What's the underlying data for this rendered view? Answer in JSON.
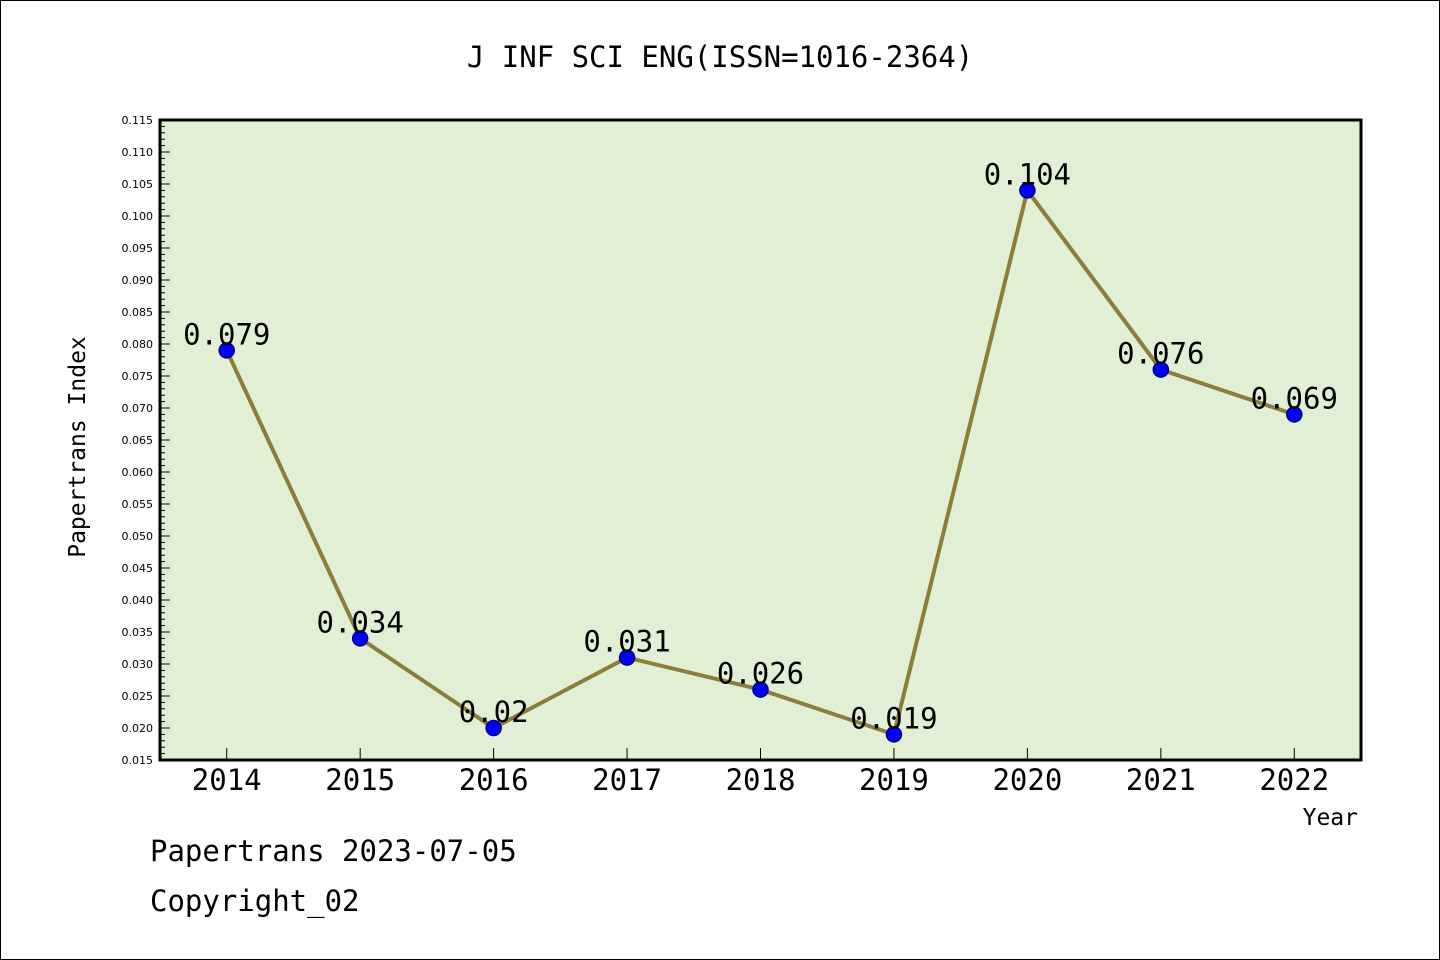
{
  "chart_data": {
    "type": "line",
    "title": "J INF SCI ENG(ISSN=1016-2364)",
    "xlabel": "Year",
    "ylabel": "Papertrans Index",
    "categories": [
      "2014",
      "2015",
      "2016",
      "2017",
      "2018",
      "2019",
      "2020",
      "2021",
      "2022"
    ],
    "values": [
      0.079,
      0.034,
      0.02,
      0.031,
      0.026,
      0.019,
      0.104,
      0.076,
      0.069
    ],
    "data_labels": [
      "0.079",
      "0.034",
      "0.02",
      "0.031",
      "0.026",
      "0.019",
      "0.104",
      "0.076",
      "0.069"
    ],
    "ylim": [
      0.015,
      0.115
    ],
    "ytick_step": 0.005,
    "ytick_labels": [
      "0.015",
      "0.020",
      "0.025",
      "0.030",
      "0.035",
      "0.040",
      "0.045",
      "0.050",
      "0.055",
      "0.060",
      "0.065",
      "0.070",
      "0.075",
      "0.080",
      "0.085",
      "0.090",
      "0.095",
      "0.100",
      "0.105",
      "0.110",
      "0.115"
    ],
    "grid": false,
    "legend": "none",
    "colors": {
      "plot_background": "#e1efd5",
      "line": "#8b7d3a",
      "marker": "#0000ff",
      "marker_edge": "#000080"
    }
  },
  "footer": {
    "line1": "Papertrans 2023-07-05",
    "line2": "Copyright_02"
  }
}
